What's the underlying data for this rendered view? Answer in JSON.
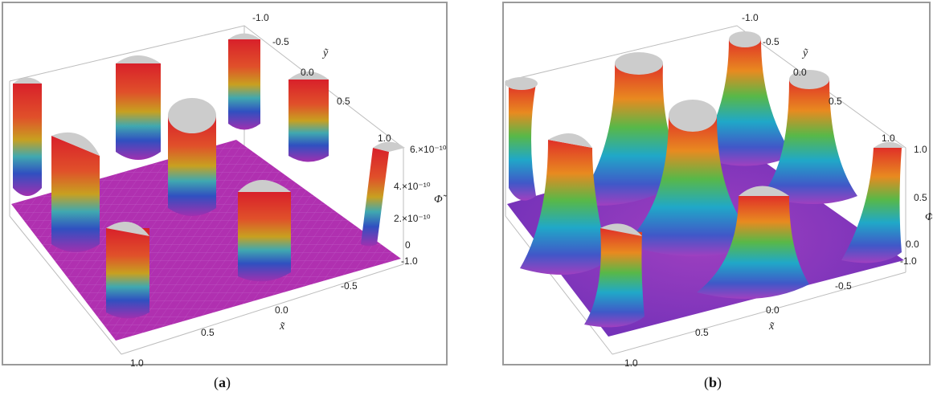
{
  "captions": {
    "a": "a",
    "b": "b"
  },
  "chart_data": [
    {
      "panel": "a",
      "type": "surface3d",
      "x_ticks": [
        "1.0",
        "0.5",
        "0.0",
        "-0.5",
        "-1.0"
      ],
      "y_ticks": [
        "-1.0",
        "-0.5",
        "0.0",
        "0.5",
        "1.0"
      ],
      "z_ticks": [
        "0",
        "2.×10⁻¹⁰",
        "4.×10⁻¹⁰",
        "6.×10⁻¹⁰"
      ],
      "xlabel": "x̃",
      "ylabel": "ỹ",
      "zlabel": "Φ̃",
      "xlim": [
        -1.0,
        1.0
      ],
      "ylim": [
        -1.0,
        1.0
      ],
      "zlim": [
        0,
        6e-10
      ],
      "surface_color": "#b030b0",
      "cap_color": "#cccccc"
    },
    {
      "panel": "b",
      "type": "surface3d",
      "x_ticks": [
        "1.0",
        "0.5",
        "0.0",
        "-0.5",
        "-1.0"
      ],
      "y_ticks": [
        "-1.0",
        "-0.5",
        "0.0",
        "0.5",
        "1.0"
      ],
      "z_ticks": [
        "0.0",
        "0.5",
        "1.0"
      ],
      "xlabel": "x̃",
      "ylabel": "ỹ",
      "zlabel": "Φ̃",
      "xlim": [
        -1.0,
        1.0
      ],
      "ylim": [
        -1.0,
        1.0
      ],
      "zlim": [
        0.0,
        1.0
      ],
      "surface_color": "#a040c0",
      "cap_color": "#cccccc"
    }
  ]
}
